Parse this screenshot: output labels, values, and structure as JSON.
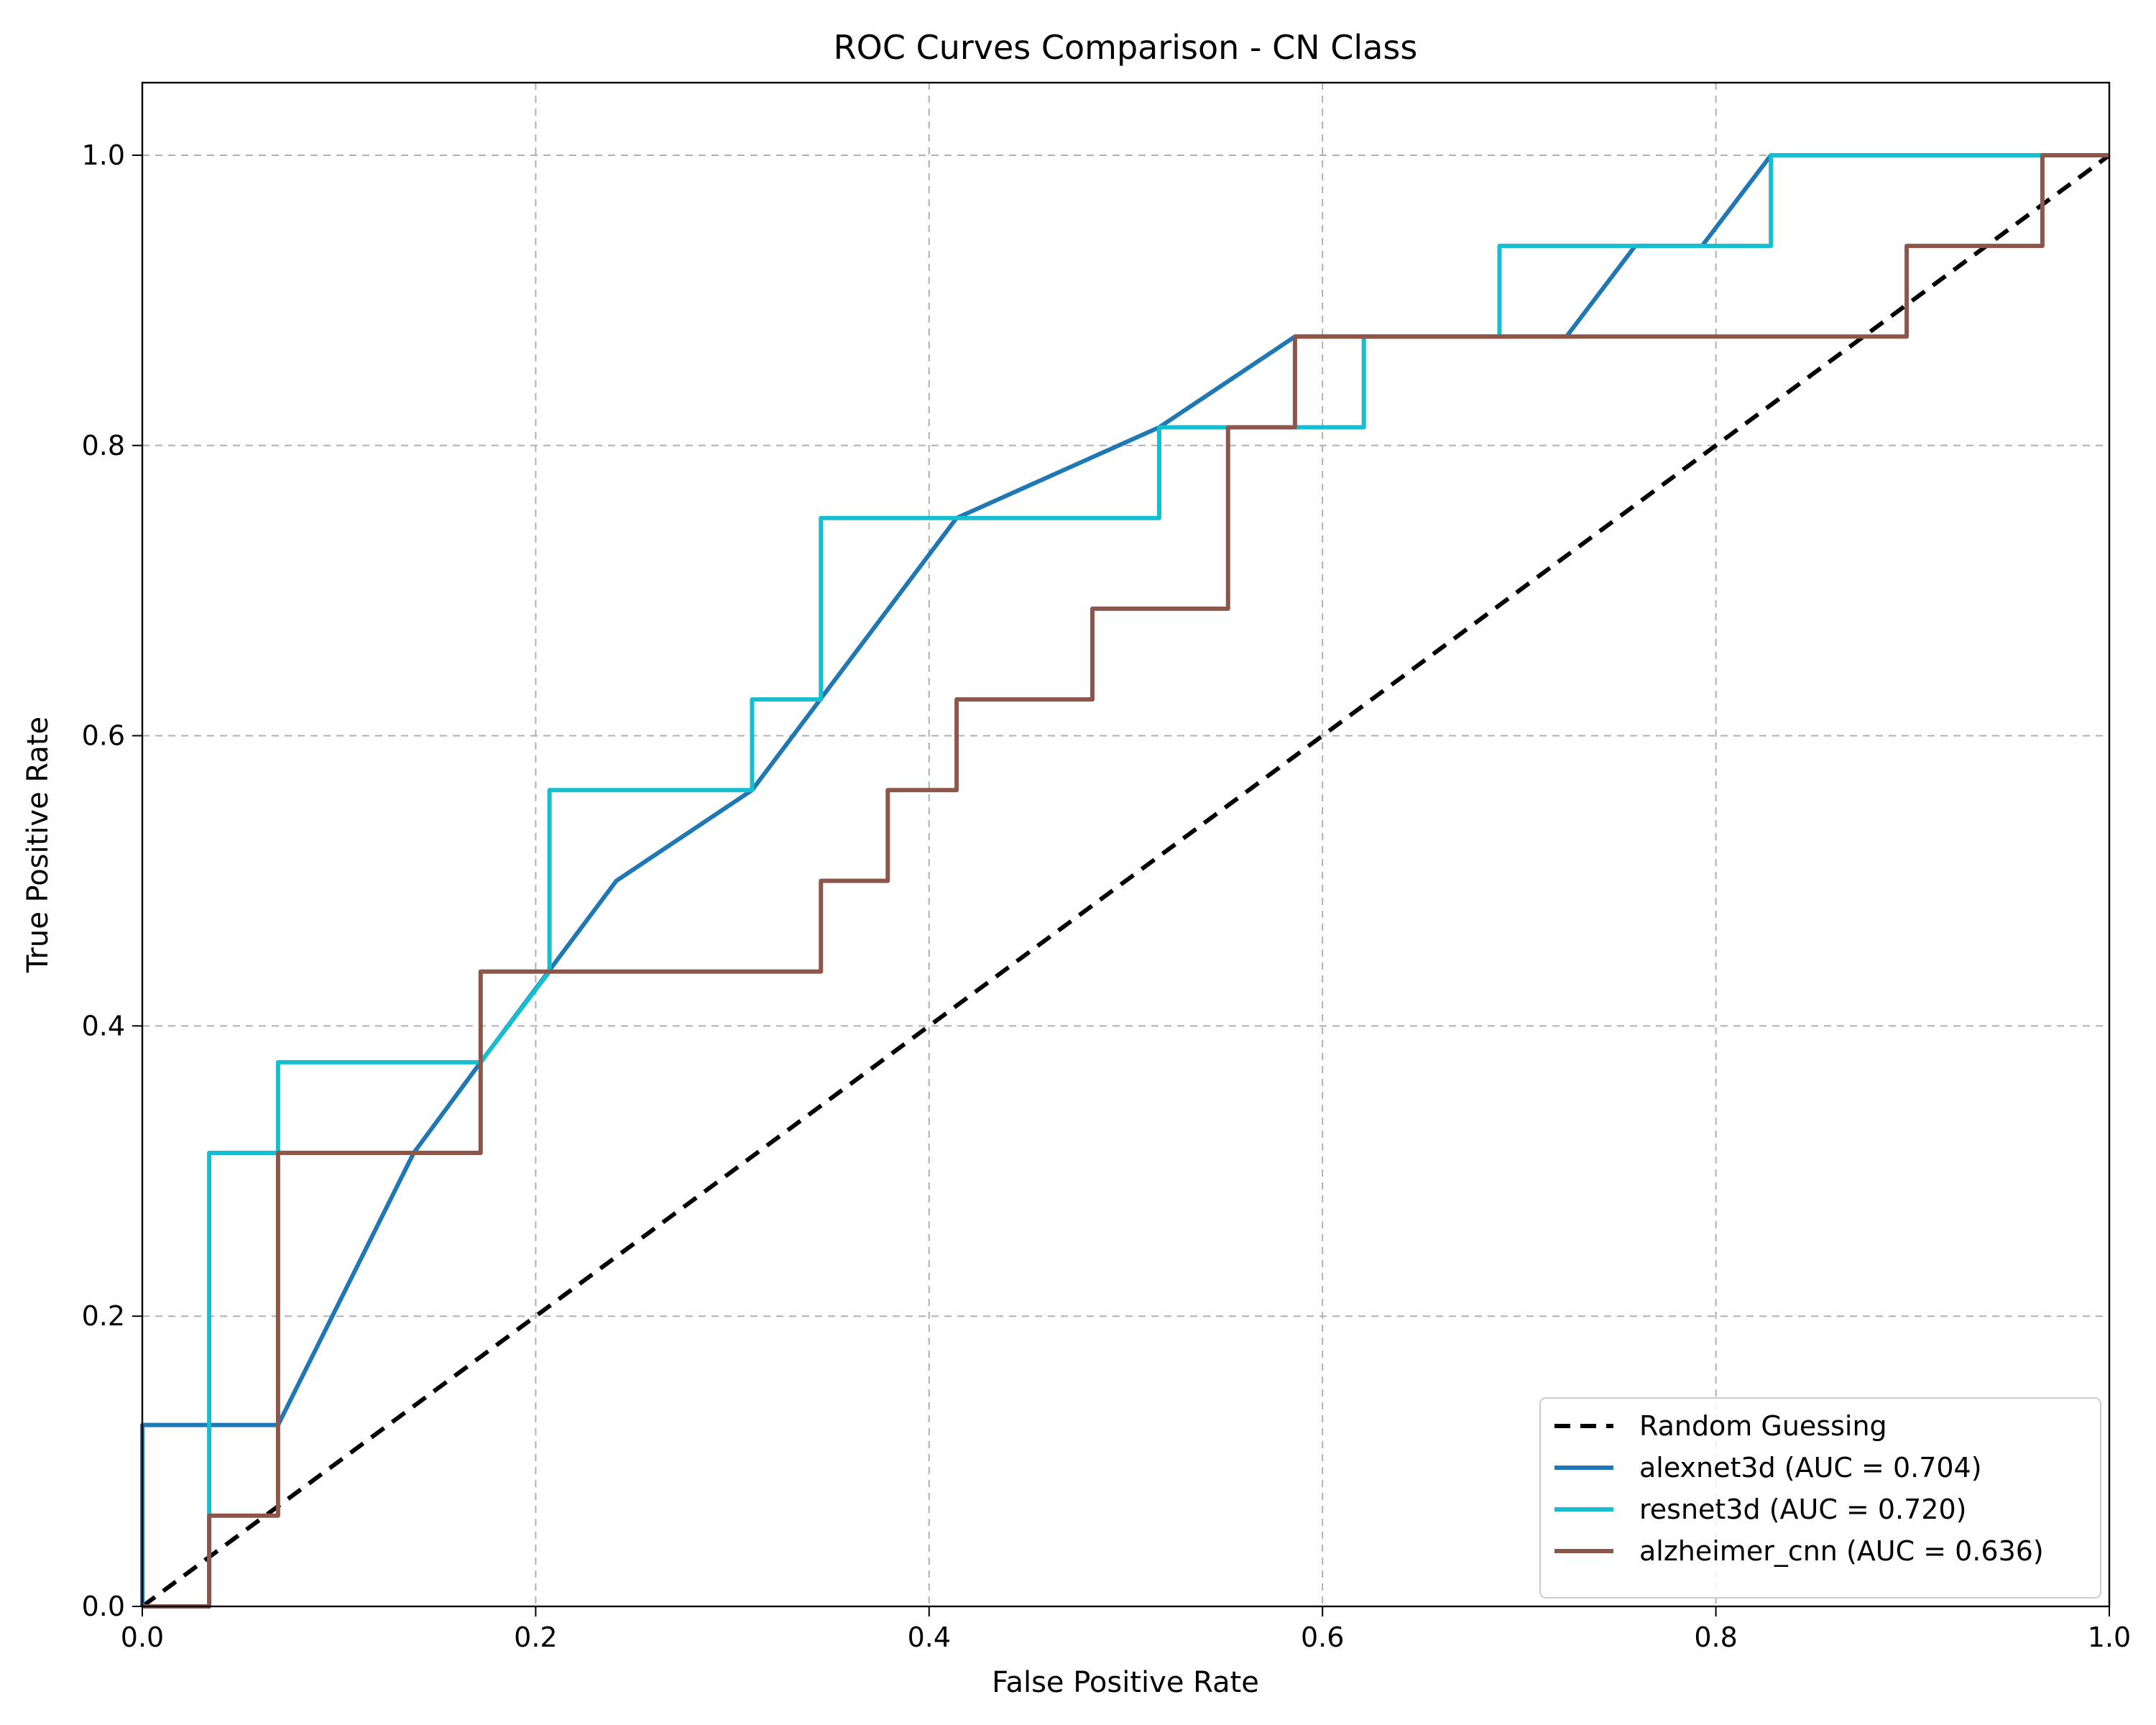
{
  "chart_data": {
    "type": "line",
    "title": "ROC Curves Comparison - CN Class",
    "xlabel": "False Positive Rate",
    "ylabel": "True Positive Rate",
    "xlim": [
      0.0,
      1.0
    ],
    "ylim": [
      0.0,
      1.05
    ],
    "grid": true,
    "grid_style": "dashed",
    "legend_position": "lower-right",
    "x_ticks": [
      "0.0",
      "0.2",
      "0.4",
      "0.6",
      "0.8",
      "1.0"
    ],
    "y_ticks": [
      "0.0",
      "0.2",
      "0.4",
      "0.6",
      "0.8",
      "1.0"
    ],
    "series": [
      {
        "name": "Random Guessing",
        "color": "#000000",
        "style": "dashed",
        "x": [
          0.0,
          1.0
        ],
        "y": [
          0.0,
          1.0
        ]
      },
      {
        "name": "alexnet3d (AUC = 0.704)",
        "color": "#1f77b4",
        "style": "solid",
        "x": [
          0.0,
          0.0,
          0.069,
          0.138,
          0.172,
          0.241,
          0.31,
          0.414,
          0.517,
          0.586,
          0.724,
          0.759,
          0.793,
          0.828,
          0.966,
          1.0
        ],
        "y": [
          0.0,
          0.125,
          0.125,
          0.3125,
          0.375,
          0.5,
          0.5625,
          0.75,
          0.8125,
          0.875,
          0.875,
          0.9375,
          0.9375,
          1.0,
          1.0,
          1.0
        ]
      },
      {
        "name": "resnet3d (AUC = 0.720)",
        "color": "#17becf",
        "style": "solid",
        "x": [
          0.0,
          0.034,
          0.034,
          0.069,
          0.069,
          0.172,
          0.207,
          0.207,
          0.31,
          0.31,
          0.345,
          0.345,
          0.517,
          0.517,
          0.621,
          0.621,
          0.69,
          0.69,
          0.828,
          0.828,
          0.966,
          1.0
        ],
        "y": [
          0.0,
          0.0,
          0.3125,
          0.3125,
          0.375,
          0.375,
          0.4375,
          0.5625,
          0.5625,
          0.625,
          0.625,
          0.75,
          0.75,
          0.8125,
          0.8125,
          0.875,
          0.875,
          0.9375,
          0.9375,
          1.0,
          1.0,
          1.0
        ]
      },
      {
        "name": "alzheimer_cnn (AUC = 0.636)",
        "color": "#8c564b",
        "style": "solid",
        "x": [
          0.0,
          0.034,
          0.034,
          0.069,
          0.069,
          0.172,
          0.172,
          0.345,
          0.345,
          0.379,
          0.379,
          0.414,
          0.414,
          0.483,
          0.483,
          0.552,
          0.552,
          0.586,
          0.586,
          0.897,
          0.897,
          0.966,
          0.966,
          1.0
        ],
        "y": [
          0.0,
          0.0,
          0.0625,
          0.0625,
          0.3125,
          0.3125,
          0.4375,
          0.4375,
          0.5,
          0.5,
          0.5625,
          0.5625,
          0.625,
          0.625,
          0.6875,
          0.6875,
          0.8125,
          0.8125,
          0.875,
          0.875,
          0.9375,
          0.9375,
          1.0,
          1.0
        ]
      }
    ]
  }
}
